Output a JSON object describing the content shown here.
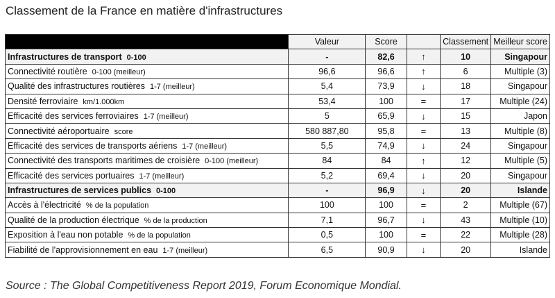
{
  "title": "Classement de la France en matière d'infrastructures",
  "columns": [
    "Valeur",
    "Score",
    "",
    "Classement",
    "Meilleur score"
  ],
  "rows": [
    {
      "label": "Infrastructures de transport",
      "unit": "0-100",
      "value": "-",
      "score": "82,6",
      "trend": "↑",
      "rank": "10",
      "best": "Singapour",
      "group": true
    },
    {
      "label": "Connectivité routière",
      "unit": "0-100 (meilleur)",
      "value": "96,6",
      "score": "96,6",
      "trend": "↑",
      "rank": "6",
      "best": "Multiple (3)"
    },
    {
      "label": "Qualité des infrastructures routières",
      "unit": "1-7 (meilleur)",
      "value": "5,4",
      "score": "73,9",
      "trend": "↓",
      "rank": "18",
      "best": "Singapour"
    },
    {
      "label": "Densité ferroviaire",
      "unit": "km/1.000km",
      "value": "53,4",
      "score": "100",
      "trend": "=",
      "rank": "17",
      "best": "Multiple (24)"
    },
    {
      "label": "Efficacité des services ferroviaires",
      "unit": "1-7 (meilleur)",
      "value": "5",
      "score": "65,9",
      "trend": "↓",
      "rank": "15",
      "best": "Japon"
    },
    {
      "label": "Connectivité aéroportuaire",
      "unit": "score",
      "value": "580 887,80",
      "score": "95,8",
      "trend": "=",
      "rank": "13",
      "best": "Multiple (8)"
    },
    {
      "label": "Efficacité des services de transports aériens",
      "unit": "1-7 (meilleur)",
      "value": "5,5",
      "score": "74,9",
      "trend": "↓",
      "rank": "24",
      "best": "Singapour"
    },
    {
      "label": "Connectivité des transports maritimes de croisière",
      "unit": "0-100 (meilleur)",
      "value": "84",
      "score": "84",
      "trend": "↑",
      "rank": "12",
      "best": "Multiple (5)"
    },
    {
      "label": "Efficacité des services portuaires",
      "unit": "1-7 (meilleur)",
      "value": "5,2",
      "score": "69,4",
      "trend": "↓",
      "rank": "20",
      "best": "Singapour"
    },
    {
      "label": "Infrastructures de services publics",
      "unit": "0-100",
      "value": "-",
      "score": "96,9",
      "trend": "↓",
      "rank": "20",
      "best": "Islande",
      "group": true
    },
    {
      "label": "Accès à l'électricité",
      "unit": "% de la population",
      "value": "100",
      "score": "100",
      "trend": "=",
      "rank": "2",
      "best": "Multiple (67)"
    },
    {
      "label": "Qualité de la production électrique",
      "unit": "% de la production",
      "value": "7,1",
      "score": "96,7",
      "trend": "↓",
      "rank": "43",
      "best": "Multiple (10)"
    },
    {
      "label": "Exposition à l'eau non potable",
      "unit": "% de la population",
      "value": "0,5",
      "score": "100",
      "trend": "=",
      "rank": "22",
      "best": "Multiple (28)"
    },
    {
      "label": "Fiabilité de l'approvisionnement en eau",
      "unit": "1-7 (meilleur)",
      "value": "6,5",
      "score": "90,9",
      "trend": "↓",
      "rank": "20",
      "best": "Islande"
    }
  ],
  "source": "Source : The Global Competitiveness Report 2019, Forum Economique Mondial."
}
